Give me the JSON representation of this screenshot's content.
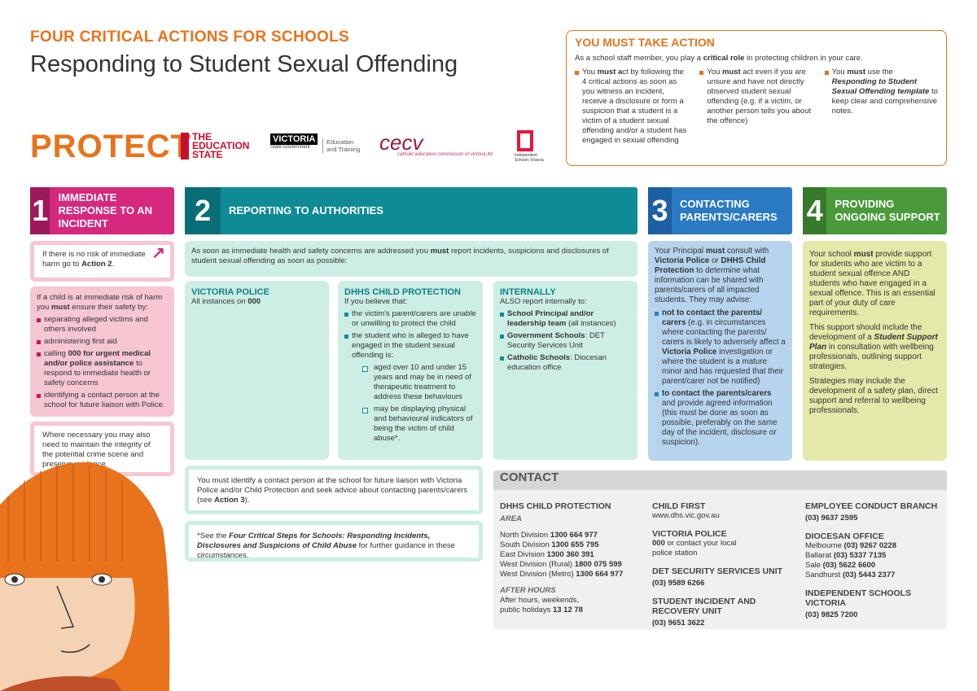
{
  "header": {
    "kicker": "FOUR CRITICAL ACTIONS FOR SCHOOLS",
    "title": "Responding to Student Sexual Offending"
  },
  "logos": {
    "protect": "PROTECT",
    "education_state": "THE EDUCATION STATE",
    "victoria": "VICTORIA",
    "victoria_sub": "State Government",
    "det": "Education and Training",
    "cecv": "cecv",
    "cecv_sub": "catholic education commission of victoria ltd",
    "isv": "Independent Schools Victoria"
  },
  "colors": {
    "orange": "#e8731c",
    "pink": "#d6287e",
    "teal": "#0f8b96",
    "blue": "#2a7ac4",
    "green": "#4a9a3c"
  },
  "action": {
    "title": "YOU MUST TAKE ACTION",
    "lead": [
      [
        "As a school staff member, you play a ",
        ""
      ],
      [
        "critical role",
        "b"
      ],
      [
        " in protecting children in your care.",
        ""
      ]
    ],
    "bullets": [
      [
        [
          "You ",
          ""
        ],
        [
          "must a",
          "b"
        ],
        [
          "ct by following the 4 critical actions as soon as you witness an incident, receive a disclosure or form a suspicion that a student is a victim of a student sexual offending and/or a student has engaged in sexual offending",
          ""
        ]
      ],
      [
        [
          "You ",
          ""
        ],
        [
          "must",
          "b"
        ],
        [
          " act even if you are unsure and have not directly observed student sexual offending (e.g. if a victim, or another person tells you about the offence)",
          ""
        ]
      ],
      [
        [
          "You ",
          ""
        ],
        [
          "must",
          "b"
        ],
        [
          " use the ",
          ""
        ],
        [
          "Responding to Student Sexual Offending template",
          "bi"
        ],
        [
          " to keep clear and comprehensive notes.",
          ""
        ]
      ]
    ]
  },
  "steps": [
    {
      "number": "1",
      "label": "IMMEDIATE RESPONSE TO AN INCIDENT"
    },
    {
      "number": "2",
      "label": "REPORTING TO AUTHORITIES"
    },
    {
      "number": "3",
      "label": "CONTACTING PARENTS/CARERS"
    },
    {
      "number": "4",
      "label": "PROVIDING ONGOING SUPPORT"
    }
  ],
  "s1": {
    "note1": [
      [
        "If there is no risk of immediate harm go to ",
        ""
      ],
      [
        "Action 2",
        "b"
      ],
      [
        ".",
        ""
      ]
    ],
    "lead": [
      [
        "If a child is at immediate risk of harm you ",
        ""
      ],
      [
        "must",
        "b"
      ],
      [
        " ensure their safety by:",
        ""
      ]
    ],
    "bullets": [
      [
        [
          "separating alleged victims and others involved",
          ""
        ]
      ],
      [
        [
          "administering first aid",
          ""
        ]
      ],
      [
        [
          "calling ",
          ""
        ],
        [
          "000 for urgent medical and/or police assistance",
          "b"
        ],
        [
          " to respond to immediate health or safety concerns",
          ""
        ]
      ],
      [
        [
          "identifying a contact person at the school for future liaison with Police.",
          ""
        ]
      ]
    ],
    "note2": [
      [
        "Where necessary you may also need to maintain the integrity of the potential crime scene and preserve evidence.",
        ""
      ]
    ]
  },
  "s2": {
    "intro": [
      [
        "As soon as immediate health and safety concerns are addressed you ",
        ""
      ],
      [
        "must",
        "b"
      ],
      [
        " report incidents, suspicions and disclosures of student sexual offending as soon as possible:",
        ""
      ]
    ],
    "police": {
      "title": "VICTORIA POLICE",
      "text": [
        [
          "All instances on ",
          ""
        ],
        [
          "000",
          "b"
        ]
      ]
    },
    "dhhs": {
      "title": "DHHS CHILD PROTECTION",
      "lead": "If you believe that:",
      "bullets": [
        [
          [
            "the victim's parent/carers are unable or unwilling to protect the child",
            ""
          ]
        ],
        [
          [
            "the student who is alleged to have engaged in the student sexual offending is:",
            ""
          ]
        ]
      ],
      "sub": [
        [
          [
            "aged over 10 and under 15 years and may be in need of therapeutic treatment to address these behaviours",
            ""
          ]
        ],
        [
          [
            "may be displaying physical and behavioural indicators of being the victim of child abuse*.",
            ""
          ]
        ]
      ]
    },
    "internal": {
      "title": "INTERNALLY",
      "lead": "ALSO report internally to:",
      "bullets": [
        [
          [
            "School Principal and/or leadership team",
            "b"
          ],
          [
            " (all instances)",
            ""
          ]
        ],
        [
          [
            "Government Schools",
            "b"
          ],
          [
            ": DET Security Services Unit",
            ""
          ]
        ],
        [
          [
            "Catholic Schools",
            "b"
          ],
          [
            ": Diocesan education office",
            ""
          ]
        ]
      ]
    },
    "note1": [
      [
        "You must identify a contact person at the school for future liaison with Victoria Police and/or Child Protection and seek advice about contacting parents/carers (see ",
        ""
      ],
      [
        "Action 3",
        "b"
      ],
      [
        ").",
        ""
      ]
    ],
    "note2": [
      [
        "*See the ",
        ""
      ],
      [
        "Four Critical Steps for Schools: Responding Incidents, Disclosures and Suspicions of Child Abuse",
        "bi"
      ],
      [
        " for further guidance in these circumstances.",
        ""
      ]
    ]
  },
  "s3": {
    "lead": [
      [
        "Your Principal ",
        ""
      ],
      [
        "must",
        "b"
      ],
      [
        " consult with ",
        ""
      ],
      [
        "Victoria Police",
        "b"
      ],
      [
        " or ",
        ""
      ],
      [
        "DHHS Child Protection",
        "b"
      ],
      [
        " to determine what information can be shared with parents/carers of all impacted students. They may advise:",
        ""
      ]
    ],
    "bullets": [
      [
        [
          "not to contact the parents/ carers",
          "b"
        ],
        [
          " (e.g. in circumstances where contacting the parents/ carers is likely to adversely affect a ",
          ""
        ],
        [
          "Victoria Police",
          "b"
        ],
        [
          " investigation or where the student is a mature minor and has requested that their parent/carer not be notified)",
          ""
        ]
      ],
      [
        [
          "to contact the parents/carers",
          "b"
        ],
        [
          " and provide agreed information (this must be done as soon as possible, preferably on the same day of the incident, disclosure or suspicion).",
          ""
        ]
      ]
    ]
  },
  "s4": {
    "paras": [
      [
        [
          "Your school ",
          ""
        ],
        [
          "must",
          "b"
        ],
        [
          " provide support for students who are victim to a student sexual offence AND students who have engaged in a sexual offence. This is an essential part of your duty of care requirements.",
          ""
        ]
      ],
      [
        [
          "This support should include the development of a ",
          ""
        ],
        [
          "Student Support Plan",
          "bi"
        ],
        [
          " in consultation with wellbeing professionals, outlining support strategies.",
          ""
        ]
      ],
      [
        [
          "Strategies may include the development of a safety plan, direct support and referral to wellbeing professionals.",
          ""
        ]
      ]
    ]
  },
  "contact": {
    "title": "CONTACT",
    "dhhs_title": "DHHS CHILD PROTECTION",
    "area": "AREA",
    "divisions": [
      [
        [
          "North Division ",
          ""
        ],
        [
          "1300 664 977",
          "b"
        ]
      ],
      [
        [
          "South Division ",
          ""
        ],
        [
          "1300 655 795",
          "b"
        ]
      ],
      [
        [
          "East Division ",
          ""
        ],
        [
          "1300 360 391",
          "b"
        ]
      ],
      [
        [
          "West Division (Rural) ",
          ""
        ],
        [
          "1800 075 599",
          "b"
        ]
      ],
      [
        [
          "West Division  (Metro) ",
          ""
        ],
        [
          "1300 664 977",
          "b"
        ]
      ]
    ],
    "after_hours": "AFTER HOURS",
    "after_text": [
      [
        "After hours, weekends, public holidays  ",
        ""
      ],
      [
        "13 12 78",
        "b"
      ]
    ],
    "child_first": "CHILD FIRST",
    "child_first_url": "www.dhs.vic.gov.au",
    "police": "VICTORIA POLICE",
    "police_text": [
      [
        "000",
        "b"
      ],
      [
        " or contact your local police station",
        ""
      ]
    ],
    "det": "DET SECURITY SERVICES UNIT",
    "det_phone": "(03) 9589 6266",
    "siru": "STUDENT INCIDENT AND RECOVERY UNIT",
    "siru_phone": "(03) 9651 3622",
    "ecb": "EMPLOYEE CONDUCT BRANCH",
    "ecb_phone": "(03) 9637 2595",
    "diocesan": "DIOCESAN OFFICE",
    "dioceses": [
      [
        [
          "Melbourne ",
          ""
        ],
        [
          "(03) 9267 0228",
          "b"
        ]
      ],
      [
        [
          "Ballarat ",
          ""
        ],
        [
          "(03) 5337 7135",
          "b"
        ]
      ],
      [
        [
          "Sale ",
          ""
        ],
        [
          "(03) 5622 6600",
          "b"
        ]
      ],
      [
        [
          "Sandhurst ",
          ""
        ],
        [
          "(03) 5443 2377",
          "b"
        ]
      ]
    ],
    "isv": "INDEPENDENT SCHOOLS VICTORIA",
    "isv_phone": "(03) 9825 7200"
  }
}
